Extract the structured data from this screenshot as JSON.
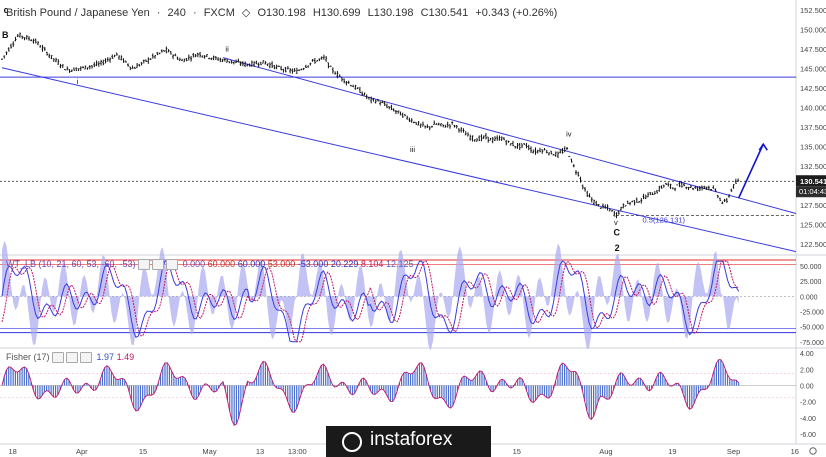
{
  "header": {
    "symbol": "British Pound / Japanese Yen",
    "timeframe": "240",
    "source": "FXCM",
    "open": "O130.198",
    "high": "H130.699",
    "low": "L130.198",
    "close": "C130.541",
    "change": "+0.343 (+0.26%)"
  },
  "price_axis": {
    "labels": [
      "152.500",
      "150.000",
      "147.500",
      "145.000",
      "142.500",
      "140.000",
      "137.500",
      "135.000",
      "132.500",
      "127.500",
      "125.000",
      "122.500"
    ],
    "current_price": "130.541",
    "countdown": "01:04:43"
  },
  "time_axis": {
    "labels": [
      "18",
      "Apr",
      "15",
      "May",
      "13",
      "13:00",
      "15",
      "Aug",
      "19",
      "Sep",
      "16"
    ]
  },
  "wave_labels": [
    "B",
    "c",
    "i",
    "ii",
    "iii",
    "iv",
    "v",
    "C",
    "2"
  ],
  "fib_label": "0.5(126.131)",
  "wt_pane": {
    "title": "WT_LB (10, 21, 60, 53, -60, -53)",
    "values": [
      "0.000",
      "60.000",
      "60.000",
      "53.000",
      "-53.000",
      "20.229",
      "8.104",
      "12.125"
    ],
    "axis": [
      "50.000",
      "25.000",
      "0.000",
      "-25.000",
      "-50.000",
      "-75.000"
    ]
  },
  "fisher_pane": {
    "title": "Fisher (17)",
    "values": [
      "1.97",
      "1.49"
    ],
    "axis": [
      "4.00",
      "2.00",
      "0.00",
      "-2.00",
      "-4.00",
      "-6.00"
    ]
  },
  "logo": {
    "text": "instaforex"
  },
  "colors": {
    "candles": "#111111",
    "channel": "#3a3ae0",
    "arrow": "#1010d0",
    "wt_fast": "#3a3ae0",
    "wt_slow": "#c0186a",
    "wt_band_upper": "#e03030",
    "wt_band_lower": "#3030e0",
    "wt_hist": "#a8a8f0",
    "fisher_bar": "#4a6ed0",
    "fisher_signal": "#c0186a"
  },
  "chart_data": {
    "type": "line",
    "title": "British Pound / Japanese Yen, 240, FXCM",
    "ylim": [
      121.2,
      153.8
    ],
    "price_path": [
      [
        0,
        146.2
      ],
      [
        4,
        149.3
      ],
      [
        8,
        148.6
      ],
      [
        12,
        146.5
      ],
      [
        16,
        144.8
      ],
      [
        20,
        145.1
      ],
      [
        24,
        145.6
      ],
      [
        28,
        146.8
      ],
      [
        32,
        145.0
      ],
      [
        36,
        146.2
      ],
      [
        40,
        147.4
      ],
      [
        44,
        146.0
      ],
      [
        48,
        146.9
      ],
      [
        52,
        146.3
      ],
      [
        56,
        145.9
      ],
      [
        60,
        145.5
      ],
      [
        64,
        145.8
      ],
      [
        68,
        145.0
      ],
      [
        72,
        144.6
      ],
      [
        76,
        145.9
      ],
      [
        79,
        146.4
      ],
      [
        80,
        145.2
      ],
      [
        82,
        144.2
      ],
      [
        84,
        143.4
      ],
      [
        86,
        142.7
      ],
      [
        88,
        141.9
      ],
      [
        90,
        141.0
      ],
      [
        92,
        140.8
      ],
      [
        94,
        140.2
      ],
      [
        96,
        139.6
      ],
      [
        98,
        139.0
      ],
      [
        100,
        138.4
      ],
      [
        102,
        137.8
      ],
      [
        104,
        137.4
      ],
      [
        106,
        137.9
      ],
      [
        108,
        137.6
      ],
      [
        110,
        137.9
      ],
      [
        112,
        137.2
      ],
      [
        114,
        136.3
      ],
      [
        116,
        135.9
      ],
      [
        118,
        136.2
      ],
      [
        120,
        135.8
      ],
      [
        122,
        136.1
      ],
      [
        124,
        135.4
      ],
      [
        126,
        135.0
      ],
      [
        128,
        135.2
      ],
      [
        130,
        134.3
      ],
      [
        132,
        134.6
      ],
      [
        134,
        134.2
      ],
      [
        136,
        133.9
      ],
      [
        137,
        134.4
      ],
      [
        138,
        134.7
      ],
      [
        139,
        133.4
      ],
      [
        140,
        132.0
      ],
      [
        141,
        131.4
      ],
      [
        142,
        129.8
      ],
      [
        143,
        128.9
      ],
      [
        144,
        128.2
      ],
      [
        146,
        127.3
      ],
      [
        148,
        127.1
      ],
      [
        150,
        126.2
      ],
      [
        151,
        126.8
      ],
      [
        152,
        127.5
      ],
      [
        154,
        127.9
      ],
      [
        156,
        128.1
      ],
      [
        158,
        128.8
      ],
      [
        160,
        129.2
      ],
      [
        162,
        130.2
      ],
      [
        164,
        129.7
      ],
      [
        166,
        130.1
      ],
      [
        168,
        129.8
      ],
      [
        170,
        129.6
      ],
      [
        172,
        129.9
      ],
      [
        174,
        129.5
      ],
      [
        176,
        127.8
      ],
      [
        177,
        127.9
      ],
      [
        178,
        129.2
      ],
      [
        179,
        130.2
      ],
      [
        180,
        130.5
      ]
    ],
    "wave_points": [
      {
        "label": "B",
        "t": 0,
        "price": 150.4
      },
      {
        "label": "i",
        "t": 18,
        "price": 143.7
      },
      {
        "label": "ii",
        "t": 54,
        "price": 146.4
      },
      {
        "label": "iii",
        "t": 99,
        "price": 134.9
      },
      {
        "label": "iv",
        "t": 137,
        "price": 134.7
      },
      {
        "label": "v",
        "t": 150,
        "price": 126.2
      }
    ],
    "channel": {
      "upper": [
        [
          54,
          146.4
        ],
        [
          194,
          126.4
        ]
      ],
      "lower": [
        [
          0,
          145.1
        ],
        [
          194,
          121.5
        ]
      ]
    },
    "horizontal_levels": [
      143.9,
      130.54
    ],
    "fib_level": 126.13,
    "projection_arrow": [
      [
        180,
        128.4
      ],
      [
        186,
        135.3
      ]
    ],
    "wt": {
      "ylim": [
        -82,
        65
      ],
      "upper_bands": [
        60,
        53
      ],
      "lower_bands": [
        -60,
        -53
      ],
      "last_values": [
        20.229,
        8.104,
        12.125
      ]
    },
    "fisher": {
      "ylim": [
        -7,
        4.4
      ],
      "last_values": [
        1.97,
        1.49
      ]
    }
  }
}
